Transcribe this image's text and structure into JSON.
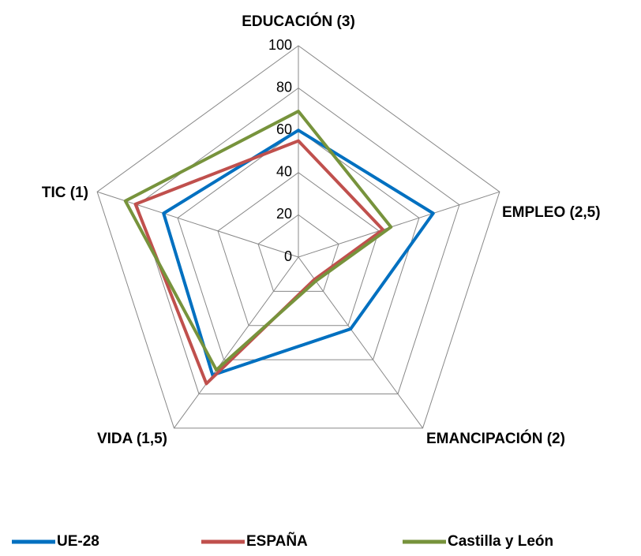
{
  "chart_data": {
    "type": "radar",
    "categories": [
      "EDUCACIÓN (3)",
      "EMPLEO (2,5)",
      "EMANCIPACIÓN (2)",
      "VIDA (1,5)",
      "TIC (1)"
    ],
    "series": [
      {
        "name": "UE-28",
        "color": "#0070c0",
        "values": [
          60,
          67,
          42,
          69,
          67
        ]
      },
      {
        "name": "ESPAÑA",
        "color": "#c0504d",
        "values": [
          55,
          42,
          13,
          74,
          81
        ]
      },
      {
        "name": "Castilla y León",
        "color": "#77933c",
        "values": [
          69,
          46,
          14,
          66,
          86
        ]
      }
    ],
    "ylim": [
      0,
      100
    ],
    "yticks": [
      0,
      20,
      40,
      60,
      80,
      100
    ],
    "grid": true
  }
}
